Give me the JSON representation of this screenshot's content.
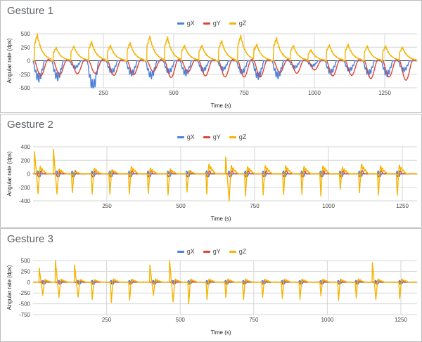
{
  "colors": {
    "gX": "#4a80db",
    "gY": "#db4437",
    "gZ": "#f4b400"
  },
  "chart_data": [
    {
      "type": "line",
      "title": "Gesture 1",
      "xlabel": "Time (s)",
      "ylabel": "Angular rate (dps)",
      "legend": [
        "gX",
        "gY",
        "gZ"
      ],
      "legend_position": "top-center",
      "grid": true,
      "xlim": [
        0,
        1365
      ],
      "ylim": [
        -500,
        500
      ],
      "xticks": [
        250,
        500,
        750,
        1000,
        1250
      ],
      "yticks": [
        500,
        250,
        0,
        -250,
        -500
      ],
      "event_format": [
        "time",
        "gZ_peak",
        "gX_min",
        "gY_min"
      ],
      "events": [
        [
          5,
          480,
          -320,
          -280
        ],
        [
          72,
          240,
          -300,
          -260
        ],
        [
          135,
          270,
          -120,
          -240
        ],
        [
          198,
          350,
          -470,
          -230
        ],
        [
          265,
          280,
          -200,
          -270
        ],
        [
          335,
          330,
          -230,
          -260
        ],
        [
          405,
          450,
          -270,
          -200
        ],
        [
          468,
          430,
          -200,
          -310
        ],
        [
          528,
          280,
          -230,
          -210
        ],
        [
          590,
          280,
          -170,
          -280
        ],
        [
          660,
          370,
          -150,
          -300
        ],
        [
          728,
          460,
          -210,
          -300
        ],
        [
          785,
          300,
          -280,
          -300
        ],
        [
          855,
          420,
          -270,
          -220
        ],
        [
          915,
          280,
          -120,
          -230
        ],
        [
          978,
          200,
          -90,
          -170
        ],
        [
          1043,
          290,
          -210,
          -280
        ],
        [
          1110,
          300,
          -170,
          -270
        ],
        [
          1178,
          270,
          -230,
          -330
        ],
        [
          1243,
          270,
          -240,
          -300
        ],
        [
          1303,
          250,
          -170,
          -360
        ]
      ]
    },
    {
      "type": "line",
      "title": "Gesture 2",
      "xlabel": "Time (s)",
      "ylabel": "Angular rate (dps)",
      "legend": [
        "gX",
        "gY",
        "gZ"
      ],
      "legend_position": "top-center",
      "grid": true,
      "xlim": [
        0,
        1300
      ],
      "ylim": [
        -400,
        400
      ],
      "xticks": [
        250,
        500,
        750,
        1000,
        1250
      ],
      "yticks": [
        400,
        200,
        0,
        -200,
        -400
      ],
      "event_format": [
        "time",
        "gZ_min",
        "gZ_spike",
        "gZ_bump"
      ],
      "events": [
        [
          17,
          -290,
          330,
          90
        ],
        [
          81,
          -300,
          370,
          60
        ],
        [
          133,
          -280,
          0,
          30
        ],
        [
          200,
          -300,
          0,
          70
        ],
        [
          260,
          -300,
          0,
          50
        ],
        [
          326,
          -300,
          0,
          90
        ],
        [
          390,
          -290,
          0,
          70
        ],
        [
          457,
          -310,
          0,
          60
        ],
        [
          521,
          -270,
          0,
          40
        ],
        [
          588,
          -300,
          0,
          120
        ],
        [
          664,
          -400,
          250,
          100
        ],
        [
          719,
          -330,
          0,
          90
        ],
        [
          779,
          -310,
          0,
          100
        ],
        [
          848,
          -310,
          0,
          100
        ],
        [
          910,
          -300,
          0,
          90
        ],
        [
          974,
          -330,
          0,
          100
        ],
        [
          1040,
          -230,
          0,
          80
        ],
        [
          1105,
          -280,
          0,
          120
        ],
        [
          1169,
          -320,
          0,
          100
        ],
        [
          1233,
          -320,
          0,
          110
        ]
      ]
    },
    {
      "type": "line",
      "title": "Gesture 3",
      "xlabel": "Time (s)",
      "ylabel": "Angular rate (dps)",
      "legend": [
        "gX",
        "gY",
        "gZ"
      ],
      "legend_position": "top-center",
      "grid": true,
      "xlim": [
        0,
        1305
      ],
      "ylim": [
        -750,
        500
      ],
      "xticks": [
        250,
        500,
        750,
        1000,
        1250
      ],
      "yticks": [
        500,
        250,
        0,
        -250,
        -500,
        -750
      ],
      "event_format": [
        "time",
        "gZ_min",
        "gZ_spike",
        "gZ_bump"
      ],
      "events": [
        [
          33,
          -300,
          330,
          50
        ],
        [
          88,
          -350,
          500,
          60
        ],
        [
          153,
          -350,
          400,
          50
        ],
        [
          201,
          -400,
          0,
          50
        ],
        [
          266,
          -470,
          0,
          60
        ],
        [
          328,
          -420,
          0,
          60
        ],
        [
          409,
          -300,
          400,
          60
        ],
        [
          476,
          -450,
          500,
          60
        ],
        [
          529,
          -500,
          0,
          60
        ],
        [
          591,
          -400,
          0,
          60
        ],
        [
          655,
          -350,
          0,
          60
        ],
        [
          715,
          -400,
          0,
          60
        ],
        [
          780,
          -350,
          0,
          60
        ],
        [
          847,
          -380,
          0,
          60
        ],
        [
          907,
          -400,
          0,
          60
        ],
        [
          978,
          -320,
          0,
          60
        ],
        [
          1038,
          -420,
          0,
          60
        ],
        [
          1098,
          -360,
          0,
          60
        ],
        [
          1165,
          -400,
          450,
          60
        ],
        [
          1246,
          -380,
          0,
          60
        ]
      ]
    }
  ]
}
